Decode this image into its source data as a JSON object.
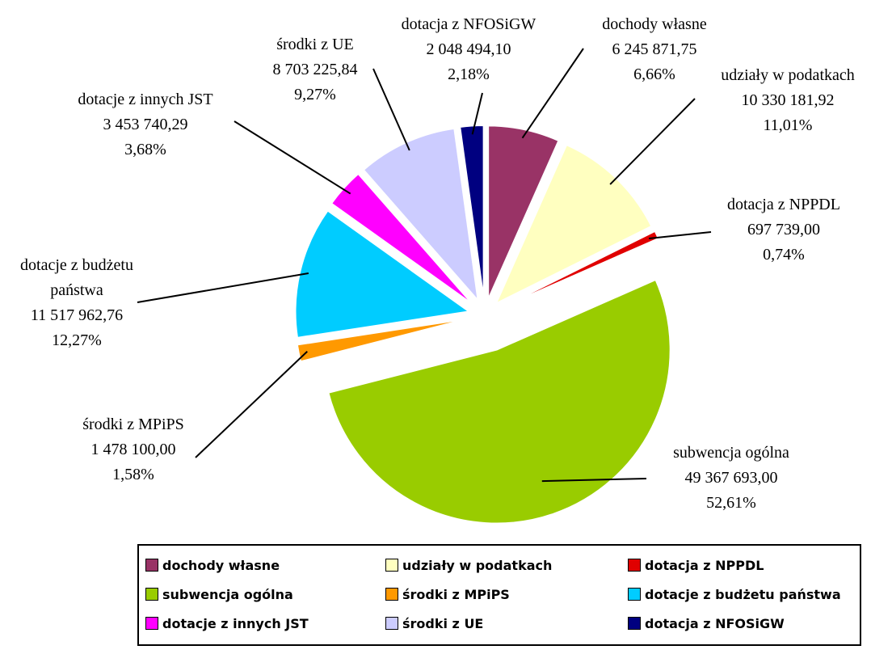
{
  "chart_data": {
    "type": "pie",
    "categories": [
      "dochody własne",
      "udziały w podatkach",
      "dotacja z NPPDL",
      "subwencja ogólna",
      "środki z MPiPS",
      "dotacje z budżetu państwa",
      "dotacje z innych JST",
      "środki z UE",
      "dotacja z NFOSiGW"
    ],
    "values": [
      6245871.75,
      10330181.92,
      697739.0,
      49367693.0,
      1478100.0,
      11517962.76,
      3453740.29,
      8703225.84,
      2048494.1
    ],
    "value_labels": [
      "6 245 871,75",
      "10 330 181,92",
      "697 739,00",
      "49 367 693,00",
      "1 478 100,00",
      "11 517 962,76",
      "3 453 740,29",
      "8 703 225,84",
      "2 048 494,10"
    ],
    "percentages": [
      6.66,
      11.01,
      0.74,
      52.61,
      1.58,
      12.27,
      3.68,
      9.27,
      2.18
    ],
    "percentage_labels": [
      "6,66%",
      "11,01%",
      "0,74%",
      "52,61%",
      "1,58%",
      "12,27%",
      "3,68%",
      "9,27%",
      "2,18%"
    ],
    "colors": [
      "#993366",
      "#ffffc0",
      "#e00000",
      "#99cc00",
      "#ff9900",
      "#00ccff",
      "#ff00ff",
      "#ccccff",
      "#000080"
    ],
    "legend": "bottom"
  }
}
